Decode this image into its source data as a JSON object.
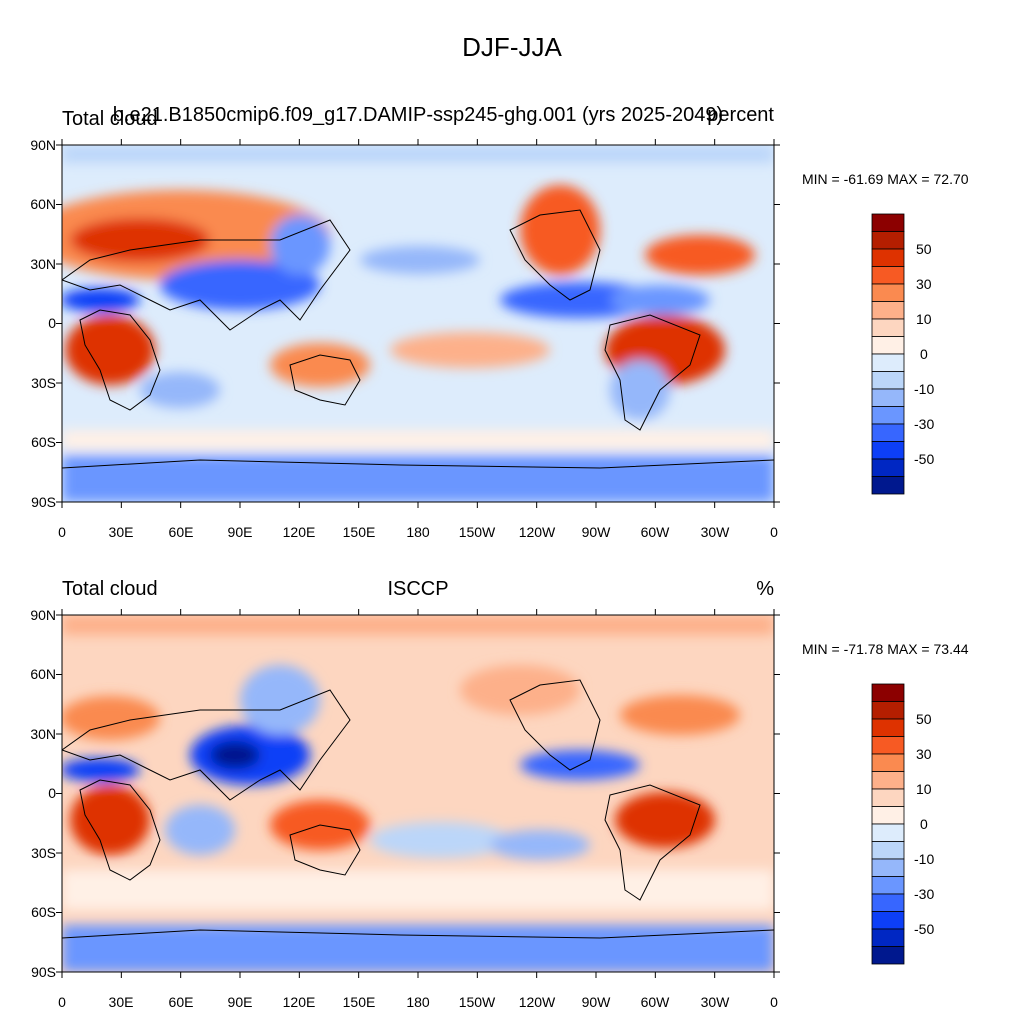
{
  "title": "DJF-JJA",
  "lat_ticks": [
    "90N",
    "60N",
    "30N",
    "0",
    "30S",
    "60S",
    "90S"
  ],
  "lon_ticks": [
    "0",
    "30E",
    "60E",
    "90E",
    "120E",
    "150E",
    "180",
    "150W",
    "120W",
    "90W",
    "60W",
    "30W",
    "0"
  ],
  "colorbar": {
    "colors": [
      "#8c0000",
      "#b41e00",
      "#de3200",
      "#f75a23",
      "#fa8a50",
      "#fdb08a",
      "#fdd6c0",
      "#fff0e6",
      "#ddecfc",
      "#bbd6f9",
      "#95b7fa",
      "#6a96ff",
      "#3766ff",
      "#0d3ff7",
      "#0027c3",
      "#00188e"
    ],
    "labels": [
      "50",
      "30",
      "10",
      "0",
      "-10",
      "-30",
      "-50"
    ],
    "units": "%"
  },
  "panels": [
    {
      "id": "model",
      "left_title": "Total cloud",
      "center_title": "b.e21.B1850cmip6.f09_g17.DAMIP-ssp245-ghg.001 (yrs 2025-2049)",
      "right_title": "percent",
      "min_max": "MIN = -61.69 MAX =  72.70",
      "min": -61.69,
      "max": 72.7
    },
    {
      "id": "obs",
      "left_title": "Total cloud",
      "center_title": "ISCCP",
      "right_title": "%",
      "min_max": "MIN = -71.78 MAX =  73.44",
      "min": -71.78,
      "max": 73.44
    }
  ]
}
